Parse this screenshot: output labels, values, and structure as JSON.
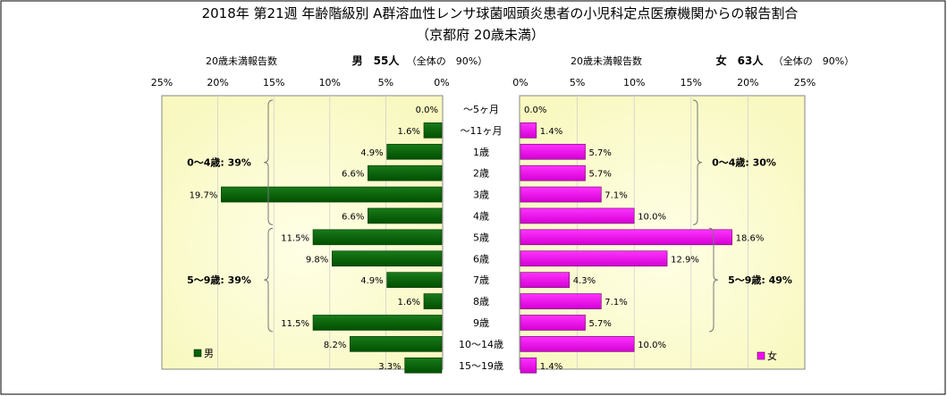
{
  "title": "2018年 第21週 年齢階級別 A群溶血性レンサ球菌咽頭炎患者の小児科定点医療機関からの報告割合",
  "subtitle": "（京都府 20歳未満）",
  "colors": {
    "male": "#006400",
    "female": "#ff00ff",
    "background_center": "#ffffe0",
    "background_edge": "#fafac8"
  },
  "chart_data": {
    "type": "bar",
    "orientation": "horizontal-butterfly",
    "categories": [
      "～5ヶ月",
      "～11ヶ月",
      "1歳",
      "2歳",
      "3歳",
      "4歳",
      "5歳",
      "6歳",
      "7歳",
      "8歳",
      "9歳",
      "10～14歳",
      "15～19歳"
    ],
    "xlim": [
      0,
      25
    ],
    "ticks": [
      "0%",
      "5%",
      "10%",
      "15%",
      "20%",
      "25%"
    ],
    "male": {
      "header_label": "20歳未満報告数",
      "header_title": "男　55人",
      "header_note": "（全体の　90%）",
      "legend": "男",
      "values": [
        0.0,
        1.6,
        4.9,
        6.6,
        19.7,
        6.6,
        11.5,
        9.8,
        4.9,
        1.6,
        11.5,
        8.2,
        3.3
      ],
      "labels": [
        "0.0%",
        "1.6%",
        "4.9%",
        "6.6%",
        "19.7%",
        "6.6%",
        "11.5%",
        "9.8%",
        "4.9%",
        "1.6%",
        "11.5%",
        "8.2%",
        "3.3%"
      ],
      "groups": [
        {
          "label": "0～4歳: 39%",
          "from": 0,
          "to": 5
        },
        {
          "label": "5～9歳: 39%",
          "from": 6,
          "to": 10
        }
      ]
    },
    "female": {
      "header_label": "20歳未満報告数",
      "header_title": "女　63人",
      "header_note": "（全体の　90%）",
      "legend": "女",
      "values": [
        0.0,
        1.4,
        5.7,
        5.7,
        7.1,
        10.0,
        18.6,
        12.9,
        4.3,
        7.1,
        5.7,
        10.0,
        1.4
      ],
      "labels": [
        "0.0%",
        "1.4%",
        "5.7%",
        "5.7%",
        "7.1%",
        "10.0%",
        "18.6%",
        "12.9%",
        "4.3%",
        "7.1%",
        "5.7%",
        "10.0%",
        "1.4%"
      ],
      "groups": [
        {
          "label": "0～4歳: 30%",
          "from": 0,
          "to": 5
        },
        {
          "label": "5～9歳: 49%",
          "from": 6,
          "to": 10
        }
      ]
    }
  }
}
